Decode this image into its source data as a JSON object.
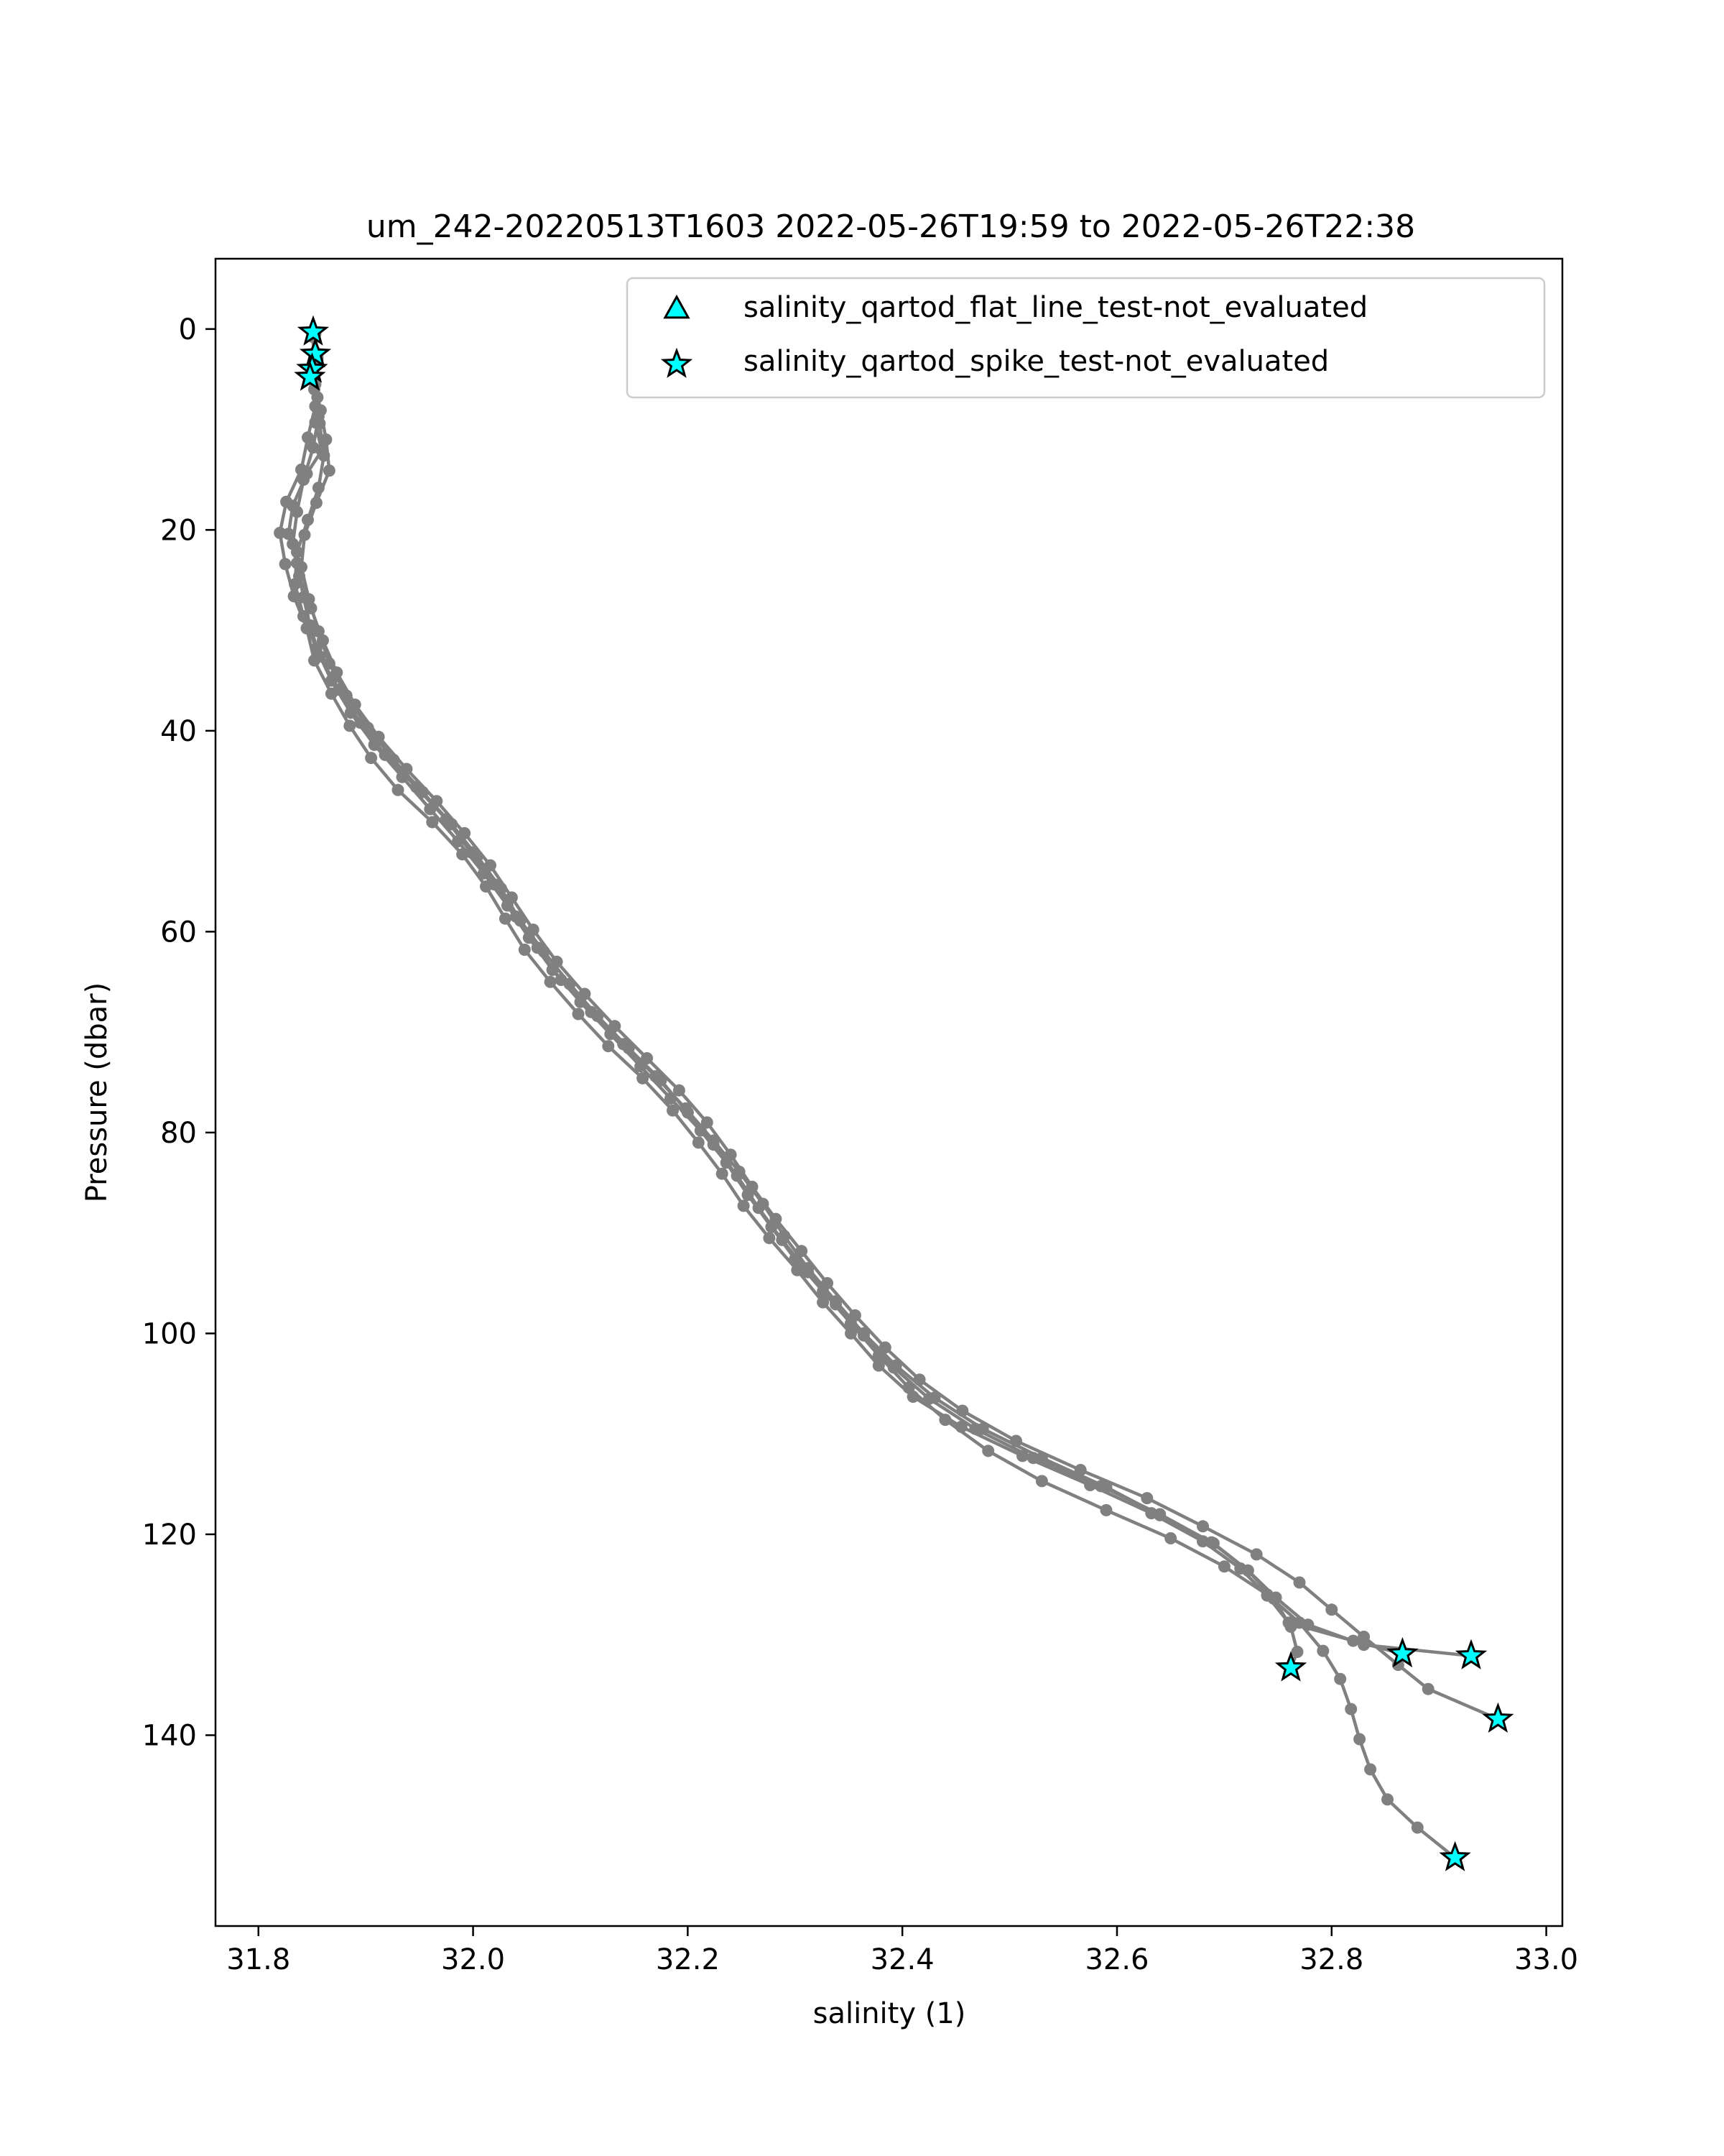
{
  "chart_data": {
    "type": "scatter",
    "title": "um_242-20220513T1603 2022-05-26T19:59 to 2022-05-26T22:38",
    "xlabel": "salinity (1)",
    "ylabel": "Pressure (dbar)",
    "xlim": [
      31.76,
      33.015
    ],
    "ylim": [
      159,
      -7
    ],
    "y_inverted": true,
    "x_ticks": [
      "31.8",
      "32.0",
      "32.2",
      "32.4",
      "32.6",
      "32.8",
      "33.0"
    ],
    "y_ticks": [
      "0",
      "20",
      "40",
      "60",
      "80",
      "100",
      "120",
      "140"
    ],
    "grid": false,
    "legend_position": "top-right",
    "colors": {
      "profile_line": "#808080",
      "flag_marker_fill": "#00ffff",
      "flag_marker_edge": "#000000"
    },
    "legend": [
      {
        "label": "salinity_qartod_flat_line_test-not_evaluated",
        "marker": "triangle"
      },
      {
        "label": "salinity_qartod_spike_test-not_evaluated",
        "marker": "star"
      }
    ],
    "series": [
      {
        "points": [
          [
            31.851,
            0.4
          ],
          [
            31.853,
            2.3
          ],
          [
            31.851,
            4.2
          ],
          [
            31.855,
            6.8
          ],
          [
            31.853,
            9.3
          ],
          [
            31.859,
            12.1
          ],
          [
            31.845,
            14.4
          ],
          [
            31.832,
            17.6
          ],
          [
            31.828,
            20.4
          ],
          [
            31.836,
            23.3
          ],
          [
            31.842,
            26.7
          ],
          [
            31.848,
            29.5
          ],
          [
            31.857,
            32.6
          ],
          [
            31.875,
            35.9
          ],
          [
            31.895,
            39.2
          ],
          [
            31.918,
            42.4
          ],
          [
            31.947,
            45.6
          ],
          [
            31.975,
            48.8
          ],
          [
            31.998,
            52.1
          ],
          [
            32.02,
            55.3
          ],
          [
            32.04,
            58.5
          ],
          [
            32.06,
            61.6
          ],
          [
            32.082,
            64.8
          ],
          [
            32.11,
            68.0
          ],
          [
            32.14,
            71.2
          ],
          [
            32.17,
            74.4
          ],
          [
            32.198,
            77.6
          ],
          [
            32.224,
            80.8
          ],
          [
            32.248,
            83.9
          ],
          [
            32.27,
            87.1
          ],
          [
            32.29,
            90.3
          ],
          [
            32.312,
            93.5
          ],
          [
            32.338,
            96.8
          ],
          [
            32.364,
            100.0
          ],
          [
            32.394,
            103.2
          ],
          [
            32.43,
            106.4
          ],
          [
            32.475,
            109.5
          ],
          [
            32.53,
            112.4
          ],
          [
            32.59,
            115.3
          ],
          [
            32.64,
            118.1
          ],
          [
            32.69,
            120.9
          ],
          [
            32.722,
            123.6
          ],
          [
            32.748,
            126.3
          ],
          [
            32.778,
            129.0
          ],
          [
            32.83,
            131.0
          ],
          [
            32.93,
            132.1
          ]
        ]
      },
      {
        "points": [
          [
            31.85,
            0.3
          ],
          [
            31.852,
            2.6
          ],
          [
            31.849,
            4.7
          ],
          [
            31.853,
            7.7
          ],
          [
            31.846,
            10.8
          ],
          [
            31.84,
            14.0
          ],
          [
            31.826,
            17.2
          ],
          [
            31.82,
            20.3
          ],
          [
            31.825,
            23.4
          ],
          [
            31.833,
            26.6
          ],
          [
            31.845,
            29.8
          ],
          [
            31.852,
            33.0
          ],
          [
            31.868,
            36.3
          ],
          [
            31.885,
            39.5
          ],
          [
            31.905,
            42.7
          ],
          [
            31.93,
            45.9
          ],
          [
            31.962,
            49.1
          ],
          [
            31.99,
            52.3
          ],
          [
            32.012,
            55.5
          ],
          [
            32.03,
            58.7
          ],
          [
            32.048,
            61.8
          ],
          [
            32.072,
            65.0
          ],
          [
            32.098,
            68.2
          ],
          [
            32.126,
            71.4
          ],
          [
            32.158,
            74.6
          ],
          [
            32.186,
            77.8
          ],
          [
            32.21,
            81.0
          ],
          [
            32.232,
            84.1
          ],
          [
            32.252,
            87.3
          ],
          [
            32.276,
            90.5
          ],
          [
            32.302,
            93.7
          ],
          [
            32.326,
            96.9
          ],
          [
            32.352,
            100.0
          ],
          [
            32.378,
            103.2
          ],
          [
            32.41,
            106.3
          ],
          [
            32.455,
            109.3
          ],
          [
            32.512,
            112.2
          ],
          [
            32.575,
            115.1
          ],
          [
            32.632,
            117.9
          ],
          [
            32.68,
            120.7
          ],
          [
            32.715,
            123.4
          ],
          [
            32.74,
            126.1
          ],
          [
            32.76,
            128.8
          ],
          [
            32.82,
            130.6
          ],
          [
            32.866,
            131.9
          ]
        ]
      },
      {
        "points": [
          [
            31.853,
            0.5
          ],
          [
            31.855,
            2.8
          ],
          [
            31.852,
            5.1
          ],
          [
            31.858,
            8.1
          ],
          [
            31.863,
            11.0
          ],
          [
            31.866,
            14.1
          ],
          [
            31.854,
            17.3
          ],
          [
            31.843,
            20.5
          ],
          [
            31.84,
            23.7
          ],
          [
            31.847,
            26.9
          ],
          [
            31.856,
            30.1
          ],
          [
            31.866,
            33.3
          ],
          [
            31.882,
            36.5
          ],
          [
            31.902,
            39.7
          ],
          [
            31.926,
            42.9
          ],
          [
            31.953,
            46.1
          ],
          [
            31.98,
            49.3
          ],
          [
            32.004,
            52.5
          ],
          [
            32.026,
            55.7
          ],
          [
            32.044,
            58.9
          ],
          [
            32.066,
            62.0
          ],
          [
            32.09,
            65.2
          ],
          [
            32.116,
            68.4
          ],
          [
            32.145,
            71.6
          ],
          [
            32.175,
            74.8
          ],
          [
            32.2,
            78.0
          ],
          [
            32.224,
            81.2
          ],
          [
            32.246,
            84.3
          ],
          [
            32.266,
            87.5
          ],
          [
            32.288,
            90.7
          ],
          [
            32.312,
            93.9
          ],
          [
            32.338,
            97.1
          ],
          [
            32.364,
            100.2
          ],
          [
            32.392,
            103.4
          ],
          [
            32.425,
            106.5
          ],
          [
            32.468,
            109.5
          ],
          [
            32.522,
            112.4
          ],
          [
            32.585,
            115.2
          ],
          [
            32.64,
            118.0
          ],
          [
            32.688,
            120.8
          ],
          [
            32.722,
            123.6
          ],
          [
            32.746,
            126.4
          ],
          [
            32.762,
            129.2
          ],
          [
            32.768,
            131.7
          ],
          [
            32.762,
            133.3
          ]
        ]
      },
      {
        "points": [
          [
            31.852,
            0.6
          ],
          [
            31.855,
            3.0
          ],
          [
            31.853,
            5.5
          ],
          [
            31.856,
            8.7
          ],
          [
            31.851,
            11.8
          ],
          [
            31.842,
            15.0
          ],
          [
            31.836,
            18.2
          ],
          [
            31.832,
            21.4
          ],
          [
            31.838,
            24.6
          ],
          [
            31.849,
            27.8
          ],
          [
            31.86,
            31.0
          ],
          [
            31.873,
            34.2
          ],
          [
            31.89,
            37.4
          ],
          [
            31.912,
            40.6
          ],
          [
            31.938,
            43.8
          ],
          [
            31.966,
            47.0
          ],
          [
            31.992,
            50.2
          ],
          [
            32.016,
            53.4
          ],
          [
            32.036,
            56.6
          ],
          [
            32.056,
            59.8
          ],
          [
            32.078,
            63.0
          ],
          [
            32.104,
            66.2
          ],
          [
            32.132,
            69.4
          ],
          [
            32.162,
            72.6
          ],
          [
            32.192,
            75.8
          ],
          [
            32.218,
            79.0
          ],
          [
            32.24,
            82.2
          ],
          [
            32.26,
            85.4
          ],
          [
            32.282,
            88.6
          ],
          [
            32.306,
            91.8
          ],
          [
            32.33,
            95.0
          ],
          [
            32.356,
            98.2
          ],
          [
            32.384,
            101.4
          ],
          [
            32.416,
            104.6
          ],
          [
            32.456,
            107.7
          ],
          [
            32.506,
            110.7
          ],
          [
            32.566,
            113.6
          ],
          [
            32.628,
            116.4
          ],
          [
            32.68,
            119.2
          ],
          [
            32.73,
            122.0
          ],
          [
            32.77,
            124.8
          ],
          [
            32.8,
            127.5
          ],
          [
            32.83,
            130.2
          ],
          [
            32.862,
            133.0
          ],
          [
            32.89,
            135.4
          ],
          [
            32.955,
            138.4
          ]
        ]
      },
      {
        "points": [
          [
            31.851,
            0.8
          ],
          [
            31.854,
            3.3
          ],
          [
            31.852,
            6.0
          ],
          [
            31.857,
            9.4
          ],
          [
            31.861,
            12.6
          ],
          [
            31.856,
            15.8
          ],
          [
            31.846,
            19.0
          ],
          [
            31.836,
            22.2
          ],
          [
            31.834,
            25.4
          ],
          [
            31.842,
            28.6
          ],
          [
            31.854,
            31.8
          ],
          [
            31.868,
            35.0
          ],
          [
            31.886,
            38.2
          ],
          [
            31.908,
            41.4
          ],
          [
            31.934,
            44.6
          ],
          [
            31.96,
            47.8
          ],
          [
            31.986,
            51.0
          ],
          [
            32.01,
            54.2
          ],
          [
            32.032,
            57.4
          ],
          [
            32.052,
            60.6
          ],
          [
            32.074,
            63.8
          ],
          [
            32.1,
            67.0
          ],
          [
            32.128,
            70.2
          ],
          [
            32.156,
            73.4
          ],
          [
            32.184,
            76.6
          ],
          [
            32.212,
            79.8
          ],
          [
            32.236,
            83.0
          ],
          [
            32.256,
            86.2
          ],
          [
            32.278,
            89.4
          ],
          [
            32.3,
            92.6
          ],
          [
            32.326,
            95.8
          ],
          [
            32.352,
            99.0
          ],
          [
            32.378,
            102.2
          ],
          [
            32.406,
            105.4
          ],
          [
            32.44,
            108.6
          ],
          [
            32.48,
            111.7
          ],
          [
            32.53,
            114.7
          ],
          [
            32.59,
            117.6
          ],
          [
            32.65,
            120.4
          ],
          [
            32.7,
            123.2
          ],
          [
            32.74,
            126.0
          ],
          [
            32.77,
            128.8
          ],
          [
            32.792,
            131.6
          ],
          [
            32.808,
            134.4
          ],
          [
            32.818,
            137.4
          ],
          [
            32.826,
            140.4
          ],
          [
            32.836,
            143.4
          ],
          [
            32.852,
            146.4
          ],
          [
            32.88,
            149.2
          ],
          [
            32.915,
            152.2
          ]
        ]
      }
    ],
    "flag_series": [
      {
        "name": "salinity_qartod_flat_line_test-not_evaluated",
        "marker": "triangle",
        "points": []
      },
      {
        "name": "salinity_qartod_spike_test-not_evaluated",
        "marker": "star",
        "points": [
          [
            31.851,
            0.3
          ],
          [
            31.853,
            2.5
          ],
          [
            31.85,
            4.0
          ],
          [
            31.848,
            4.8
          ],
          [
            32.866,
            131.9
          ],
          [
            32.93,
            132.1
          ],
          [
            32.762,
            133.3
          ],
          [
            32.955,
            138.4
          ],
          [
            32.915,
            152.2
          ]
        ]
      }
    ]
  }
}
